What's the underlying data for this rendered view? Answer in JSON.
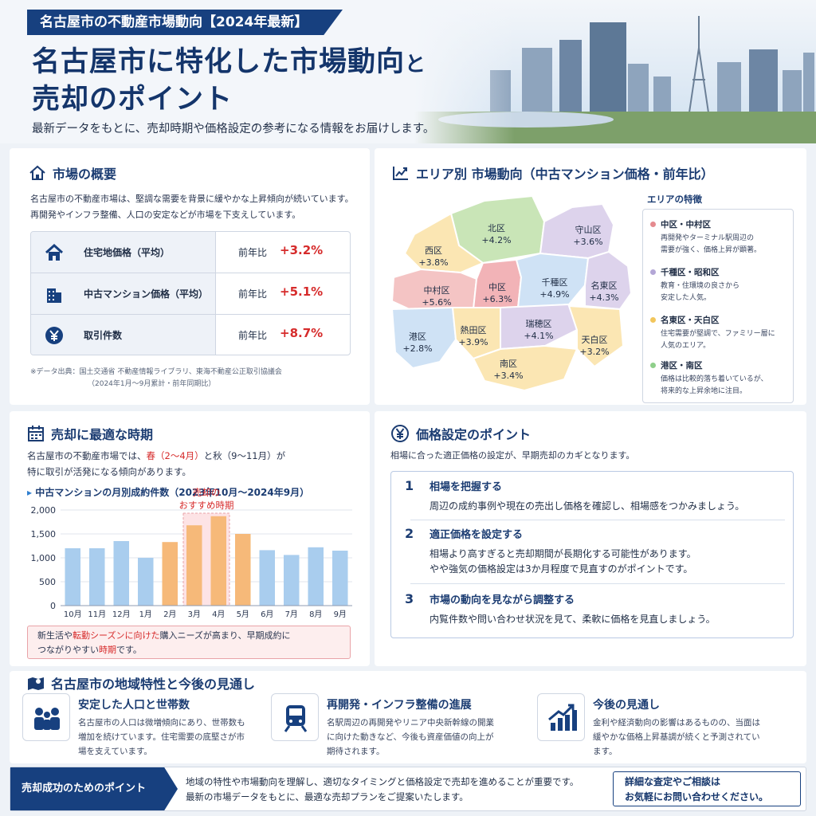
{
  "header": {
    "tag": "名古屋市の不動産市場動向【2024年最新】",
    "title_line1_a": "名古屋市に特化した市場動向",
    "title_line1_b": "と",
    "title_line2": "売却のポイント",
    "subtitle": "最新データをもとに、売却時期や価格設定の参考になる情報をお届けします。"
  },
  "overview": {
    "title": "市場の概要",
    "text_line1": "名古屋市の不動産市場は、堅調な需要を背景に緩やかな上昇傾向が続いています。",
    "text_line2": "再開発やインフラ整備、人口の安定などが市場を下支えしています。",
    "rows": [
      {
        "icon": "house-icon",
        "label": "住宅地価格（平均）",
        "yoy": "前年比",
        "value": "+3.2%"
      },
      {
        "icon": "building-icon",
        "label": "中古マンション価格（平均）",
        "yoy": "前年比",
        "value": "+5.1%"
      },
      {
        "icon": "yen-icon",
        "label": "取引件数",
        "yoy": "前年比",
        "value": "+8.7%"
      }
    ],
    "note_line1": "※データ出典：国土交通省 不動産情報ライブラリ、東海不動産公正取引協議会",
    "note_line2": "（2024年1月〜9月累計・前年同期比）"
  },
  "area_trend": {
    "title": "エリア別 市場動向（中古マンション価格・前年比）",
    "wards": [
      {
        "name": "北区",
        "value": "+4.2%",
        "color": "#c9e5b7"
      },
      {
        "name": "守山区",
        "value": "+3.6%",
        "color": "#ddd3ec"
      },
      {
        "name": "西区",
        "value": "+3.8%",
        "color": "#fbe6b3"
      },
      {
        "name": "中村区",
        "value": "+5.6%",
        "color": "#f4c4c4"
      },
      {
        "name": "中区",
        "value": "+6.3%",
        "color": "#f2b3b7"
      },
      {
        "name": "千種区",
        "value": "+4.9%",
        "color": "#cfe2f5"
      },
      {
        "name": "名東区",
        "value": "+4.3%",
        "color": "#ddd3ec"
      },
      {
        "name": "港区",
        "value": "+2.8%",
        "color": "#cfe2f5"
      },
      {
        "name": "熱田区",
        "value": "+3.9%",
        "color": "#fbe6b3"
      },
      {
        "name": "瑞穂区",
        "value": "+4.1%",
        "color": "#ddd3ec"
      },
      {
        "name": "天白区",
        "value": "+3.2%",
        "color": "#fbe6b3"
      },
      {
        "name": "南区",
        "value": "+3.4%",
        "color": "#fbe6b3"
      }
    ],
    "legend_title": "エリアの特徴",
    "legend": [
      {
        "name": "中区・中村区",
        "color": "#e58a8f",
        "desc1": "再開発やターミナル駅周辺の",
        "desc2": "需要が強く、価格上昇が顕著。"
      },
      {
        "name": "千種区・昭和区",
        "color": "#b3a6d6",
        "desc1": "教育・住環境の良さから",
        "desc2": "安定した人気。"
      },
      {
        "name": "名東区・天白区",
        "color": "#f2c65c",
        "desc1": "住宅需要が堅調で、ファミリー層に",
        "desc2": "人気のエリア。"
      },
      {
        "name": "港区・南区",
        "color": "#8fcf8a",
        "desc1": "価格は比較的落ち着いているが、",
        "desc2": "将来的な上昇余地に注目。"
      }
    ]
  },
  "best_time": {
    "title": "売却に最適な時期",
    "text_a": "名古屋市の不動産市場では、",
    "text_b": "春（2〜4月）",
    "text_c": "と秋（9〜11月）が",
    "text_line2": "特に取引が活発になる傾向があります。",
    "chart_heading": "中古マンションの月別成約件数（2023年10月〜2024年9月）",
    "recommend_line1": "売却の",
    "recommend_line2": "おすすめ時期",
    "note_a": "新生活や",
    "note_b": "転勤シーズンに向けた",
    "note_c": "購入ニーズが高",
    "note_d": "まり、早期成約に",
    "note_line2_a": "つながりやすい",
    "note_line2_b": "時期",
    "note_line2_c": "です。"
  },
  "pricing": {
    "title": "価格設定のポイント",
    "intro": "相場に合った適正価格の設定が、早期売却のカギとなります。",
    "steps": [
      {
        "num": "1",
        "head": "相場を把握する",
        "body1": "周辺の成約事例や現在の売出し価格を確認し、相場感をつかみましょう。",
        "body2": ""
      },
      {
        "num": "2",
        "head": "適正価格を設定する",
        "body1": "相場より高すぎると売却期間が長期化する可能性があります。",
        "body2": "やや強気の価格設定は3か月程度で見直すのがポイントです。"
      },
      {
        "num": "3",
        "head": "市場の動向を見ながら調整する",
        "body1": "内覧件数や問い合わせ状況を見て、柔軟に価格を見直しましょう。",
        "body2": ""
      }
    ]
  },
  "outlook": {
    "title": "名古屋市の地域特性と今後の見通し",
    "features": [
      {
        "icon": "people-icon",
        "head": "安定した人口と世帯数",
        "body": "名古屋市の人口は微増傾向にあり、世帯数も増加を続けています。住宅需要の底堅さが市場を支えています。"
      },
      {
        "icon": "train-icon",
        "head": "再開発・インフラ整備の進展",
        "body": "名駅周辺の再開発やリニア中央新幹線の開業に向けた動きなど、今後も資産価値の向上が期待されます。"
      },
      {
        "icon": "growth-chart-icon",
        "head": "今後の見通し",
        "body": "金利や経済動向の影響はあるものの、当面は緩やかな価格上昇基調が続くと予測されています。"
      }
    ]
  },
  "footer": {
    "tag": "売却成功のためのポイント",
    "text_line1": "地域の特性や市場動向を理解し、適切なタイミングと価格設定で売却を進めることが重要です。",
    "text_line2": "最新の市場データをもとに、最適な売却プランをご提案いたします。",
    "cta_line1": "詳細な査定やご相談は",
    "cta_line2": "お気軽にお問い合わせください。"
  },
  "colors": {
    "navy": "#17407f",
    "accent_red": "#d62b2b",
    "bar_blue": "#a9cdee",
    "bar_orange": "#f6b979"
  },
  "chart_data": {
    "type": "bar",
    "title": "中古マンションの月別成約件数（2023年10月〜2024年9月）",
    "categories": [
      "10月",
      "11月",
      "12月",
      "1月",
      "2月",
      "3月",
      "4月",
      "5月",
      "6月",
      "7月",
      "8月",
      "9月"
    ],
    "values": [
      1200,
      1200,
      1350,
      1000,
      1330,
      1680,
      1870,
      1500,
      1160,
      1060,
      1220,
      1150
    ],
    "highlighted": [
      "2月",
      "3月",
      "4月",
      "5月"
    ],
    "ylim": [
      0,
      2000
    ],
    "yticks": [
      0,
      500,
      1000,
      1500,
      2000
    ],
    "ytick_labels": [
      "0",
      "500",
      "1,000",
      "1,500",
      "2,000"
    ],
    "grid": true,
    "annotation": "売却のおすすめ時期"
  }
}
